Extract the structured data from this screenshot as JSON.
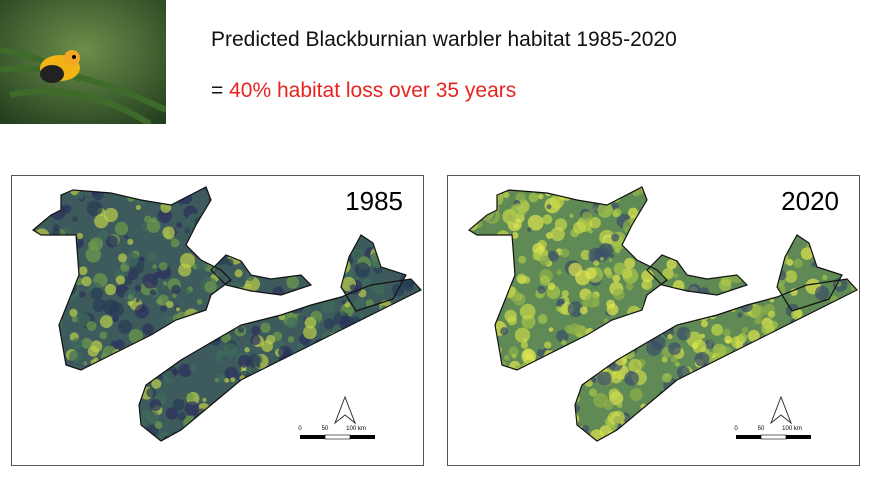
{
  "header": {
    "title": "Predicted Blackburnian warbler habitat 1985-2020",
    "equals": "=",
    "subtitle": "40% habitat loss over 35 years"
  },
  "maps": [
    {
      "year_label": "1985",
      "scale_labels": [
        "0",
        "50",
        "100 km"
      ]
    },
    {
      "year_label": "2020",
      "scale_labels": [
        "0",
        "50",
        "100 km"
      ]
    }
  ]
}
